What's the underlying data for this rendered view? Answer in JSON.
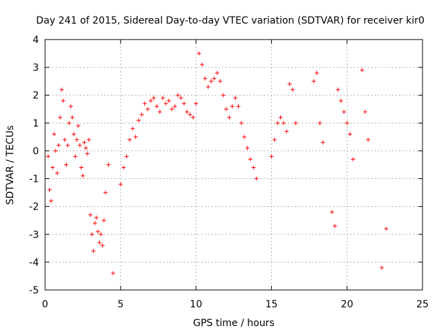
{
  "chart_data": {
    "type": "scatter",
    "title": "Day 241 of 2015, Sidereal Day-to-day VTEC variation (SDTVAR) for receiver kir0",
    "xlabel": "GPS time / hours",
    "ylabel": "SDTVAR / TECUs",
    "xlim": [
      0,
      25
    ],
    "ylim": [
      -5,
      4
    ],
    "xticks": [
      0,
      5,
      10,
      15,
      20,
      25
    ],
    "yticks": [
      -5,
      -4,
      -3,
      -2,
      -1,
      0,
      1,
      2,
      3,
      4
    ],
    "grid": true,
    "marker": "+",
    "color": "#ff0000",
    "series": [
      {
        "name": "kir0",
        "x": [
          0.2,
          0.3,
          0.4,
          0.5,
          0.6,
          0.7,
          0.8,
          0.9,
          1.0,
          1.1,
          1.2,
          1.3,
          1.4,
          1.5,
          1.6,
          1.7,
          1.8,
          1.9,
          2.0,
          2.1,
          2.2,
          2.3,
          2.4,
          2.5,
          2.6,
          2.7,
          2.8,
          2.9,
          3.0,
          3.1,
          3.2,
          3.3,
          3.4,
          3.5,
          3.6,
          3.7,
          3.8,
          3.9,
          4.0,
          4.2,
          4.5,
          5.0,
          5.2,
          5.4,
          5.6,
          5.8,
          6.0,
          6.2,
          6.4,
          6.6,
          6.8,
          7.0,
          7.2,
          7.4,
          7.6,
          7.8,
          8.0,
          8.2,
          8.4,
          8.6,
          8.8,
          9.0,
          9.2,
          9.4,
          9.6,
          9.8,
          10.0,
          10.2,
          10.4,
          10.6,
          10.8,
          11.0,
          11.2,
          11.4,
          11.6,
          11.8,
          12.0,
          12.2,
          12.4,
          12.6,
          12.8,
          13.0,
          13.2,
          13.4,
          13.6,
          13.8,
          14.0,
          15.0,
          15.2,
          15.4,
          15.6,
          15.8,
          16.0,
          16.2,
          16.4,
          16.6,
          17.8,
          18.0,
          18.2,
          18.4,
          19.0,
          19.2,
          19.4,
          19.6,
          19.8,
          20.0,
          20.2,
          20.4,
          21.0,
          21.2,
          21.4,
          22.3,
          22.6
        ],
        "y": [
          -0.2,
          -1.4,
          -1.8,
          -0.6,
          0.6,
          0.0,
          -0.8,
          0.2,
          1.2,
          2.2,
          1.8,
          0.4,
          -0.5,
          0.2,
          1.0,
          1.6,
          1.2,
          0.6,
          -0.2,
          0.4,
          0.9,
          0.2,
          -0.6,
          -0.9,
          0.3,
          0.1,
          -0.1,
          0.4,
          -2.3,
          -3.0,
          -3.6,
          -2.6,
          -2.4,
          -2.9,
          -3.3,
          -3.0,
          -3.4,
          -2.5,
          -1.5,
          -0.5,
          -4.4,
          -1.2,
          -0.6,
          -0.2,
          0.4,
          0.8,
          0.5,
          1.1,
          1.3,
          1.7,
          1.5,
          1.8,
          1.9,
          1.6,
          1.4,
          1.9,
          1.7,
          1.8,
          1.5,
          1.6,
          2.0,
          1.9,
          1.7,
          1.4,
          1.3,
          1.2,
          1.7,
          3.5,
          3.1,
          2.6,
          2.3,
          2.5,
          2.6,
          2.8,
          2.5,
          2.0,
          1.5,
          1.2,
          1.6,
          1.9,
          1.6,
          1.0,
          0.5,
          0.1,
          -0.3,
          -0.6,
          -1.0,
          -0.2,
          0.4,
          1.0,
          1.2,
          1.0,
          0.7,
          2.4,
          2.2,
          1.0,
          2.5,
          2.8,
          1.0,
          0.3,
          -2.2,
          -2.7,
          2.2,
          1.8,
          1.4,
          1.0,
          0.6,
          -0.3,
          2.9,
          1.4,
          0.4,
          -4.2,
          -2.8
        ]
      }
    ]
  }
}
